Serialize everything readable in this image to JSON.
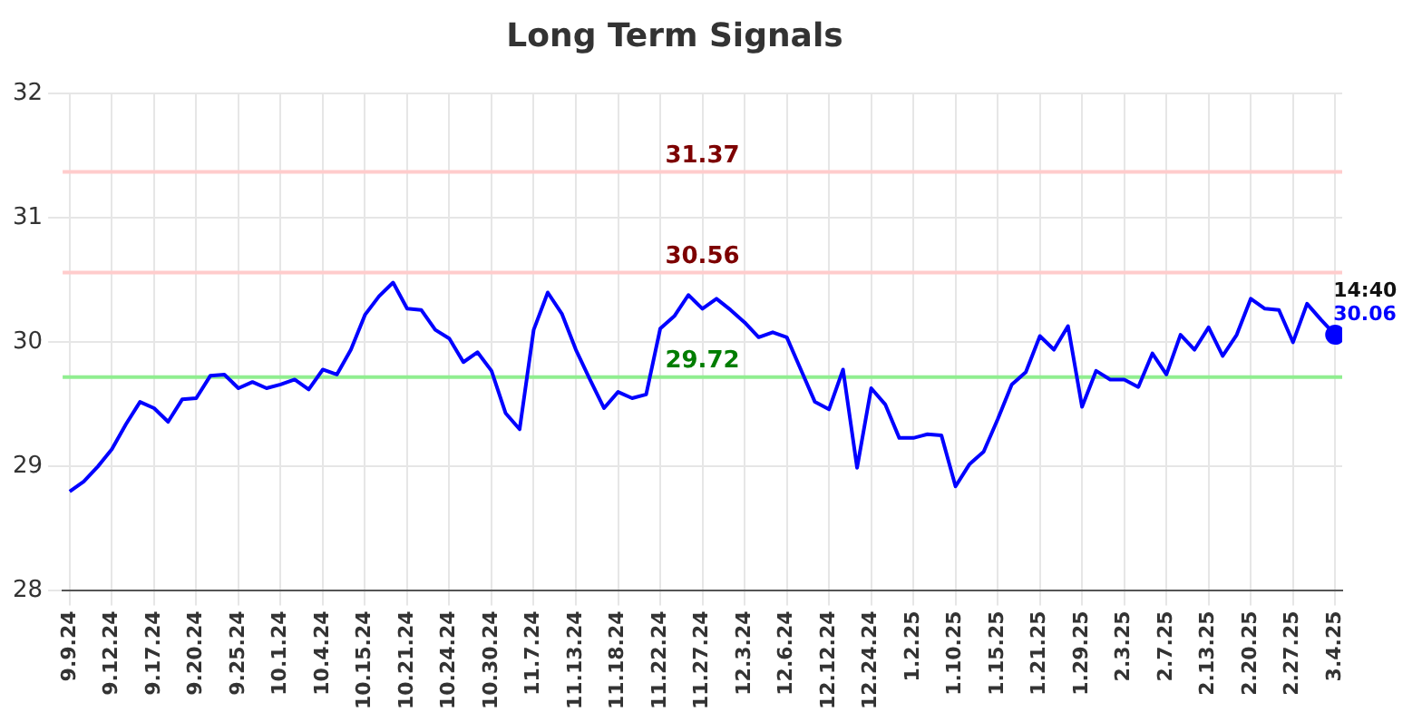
{
  "chart_data": {
    "type": "line",
    "title": "Long Term Signals",
    "categories": [
      "9.9.24",
      null,
      null,
      "9.12.24",
      null,
      null,
      "9.17.24",
      null,
      null,
      "9.20.24",
      null,
      null,
      "9.25.24",
      null,
      null,
      "10.1.24",
      null,
      null,
      "10.4.24",
      null,
      null,
      "10.15.24",
      null,
      null,
      "10.21.24",
      null,
      null,
      "10.24.24",
      null,
      null,
      "10.30.24",
      null,
      null,
      "11.7.24",
      null,
      null,
      "11.13.24",
      null,
      null,
      "11.18.24",
      null,
      null,
      "11.22.24",
      null,
      null,
      "11.27.24",
      null,
      null,
      "12.3.24",
      null,
      null,
      "12.6.24",
      null,
      null,
      "12.12.24",
      null,
      null,
      "12.24.24",
      null,
      null,
      "1.2.25",
      null,
      null,
      "1.10.25",
      null,
      null,
      "1.15.25",
      null,
      null,
      "1.21.25",
      null,
      null,
      "1.29.25",
      null,
      null,
      "2.3.25",
      null,
      null,
      "2.7.25",
      null,
      null,
      "2.13.25",
      null,
      null,
      "2.20.25",
      null,
      null,
      "2.27.25",
      null,
      null,
      "3.4.25"
    ],
    "series": [
      {
        "color": "#0000ff",
        "values": [
          28.8,
          28.88,
          29.0,
          29.14,
          29.34,
          29.52,
          29.47,
          29.36,
          29.54,
          29.55,
          29.73,
          29.74,
          29.63,
          29.68,
          29.63,
          29.66,
          29.7,
          29.62,
          29.78,
          29.74,
          29.94,
          30.22,
          30.37,
          30.48,
          30.27,
          30.26,
          30.1,
          30.03,
          29.84,
          29.92,
          29.77,
          29.43,
          29.3,
          30.1,
          30.4,
          30.23,
          29.94,
          29.7,
          29.47,
          29.6,
          29.55,
          29.58,
          30.11,
          30.21,
          30.38,
          30.27,
          30.35,
          30.26,
          30.16,
          30.04,
          30.08,
          30.04,
          29.78,
          29.52,
          29.46,
          29.78,
          28.99,
          29.63,
          29.5,
          29.23,
          29.23,
          29.26,
          29.25,
          28.84,
          29.02,
          29.12,
          29.38,
          29.66,
          29.76,
          30.05,
          29.94,
          30.13,
          29.48,
          29.77,
          29.7,
          29.7,
          29.64,
          29.91,
          29.74,
          30.06,
          29.94,
          30.12,
          29.89,
          30.06,
          30.35,
          30.27,
          30.26,
          30.0,
          30.31,
          30.18,
          30.06
        ]
      },
      {
        "type": "scatter",
        "color": "#0000ff",
        "marker": "circle",
        "x": [
          "3.4.25"
        ],
        "values": [
          30.06
        ]
      }
    ],
    "ylim": [
      28,
      32
    ],
    "yticks": [
      28,
      29,
      30,
      31,
      32
    ],
    "ref_lines": [
      {
        "axis": "y",
        "value": 31.37,
        "label": "31.37",
        "color": "#ffcccc"
      },
      {
        "axis": "y",
        "value": 30.56,
        "label": "30.56",
        "color": "#ffcccc"
      },
      {
        "axis": "y",
        "value": 29.72,
        "label": "29.72",
        "color": "#90ee90"
      }
    ],
    "annotations": [
      {
        "text": "14:40",
        "x": "3.4.25",
        "y": 30.06
      },
      {
        "text": "30.06",
        "x": "3.4.25",
        "y": 30.06
      }
    ],
    "grid": true,
    "legend": false,
    "marker": "none",
    "line_style": "solid"
  }
}
